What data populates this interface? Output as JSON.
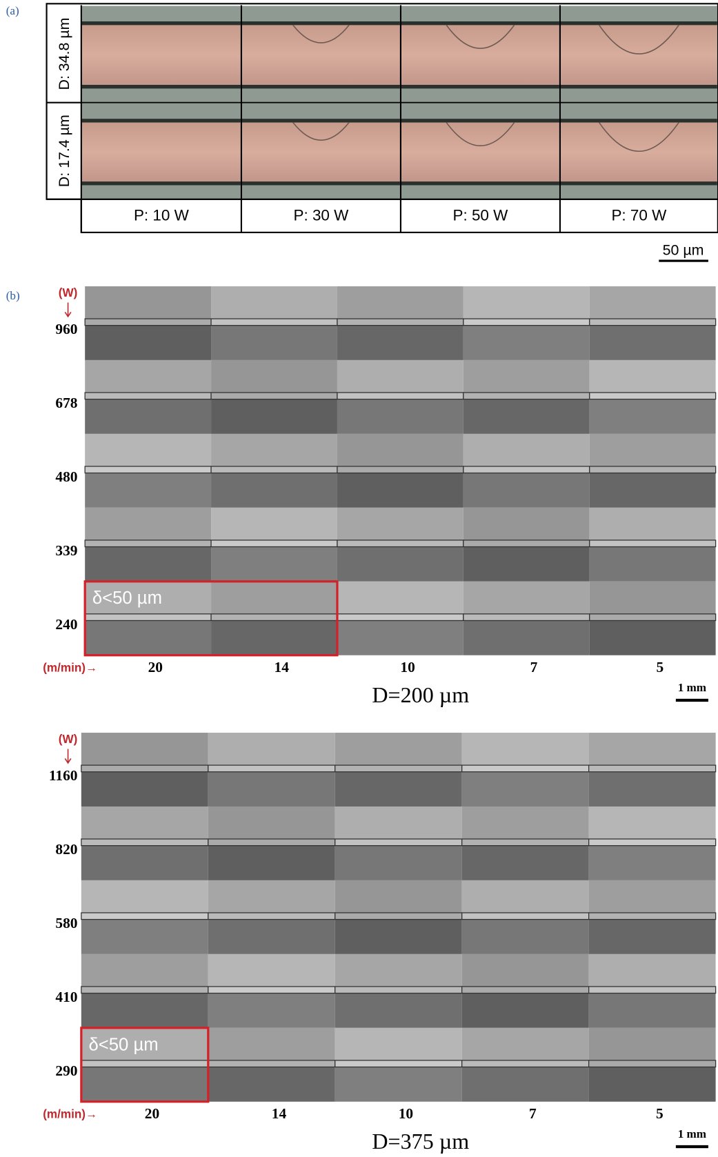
{
  "panel_a": {
    "label": "(a)",
    "row_labels": [
      "D: 34.8 µm",
      "D: 17.4 µm"
    ],
    "column_labels": [
      "P: 10 W",
      "P: 30 W",
      "P: 50 W",
      "P: 70 W"
    ],
    "scale_bar": "50 µm"
  },
  "panel_b": {
    "label": "(b)",
    "grids": [
      {
        "power_unit": "(W)",
        "powers": [
          "960",
          "678",
          "480",
          "339",
          "240"
        ],
        "speed_unit": "(m/min)→",
        "speeds": [
          "20",
          "14",
          "10",
          "7",
          "5"
        ],
        "highlight": "δ<50 µm",
        "caption": "D=200 µm",
        "scale_bar": "1 mm"
      },
      {
        "power_unit": "(W)",
        "powers": [
          "1160",
          "820",
          "580",
          "410",
          "290"
        ],
        "speed_unit": "(m/min)→",
        "speeds": [
          "20",
          "14",
          "10",
          "7",
          "5"
        ],
        "highlight": "δ<50 µm",
        "caption": "D=375 µm",
        "scale_bar": "1 mm"
      }
    ]
  }
}
